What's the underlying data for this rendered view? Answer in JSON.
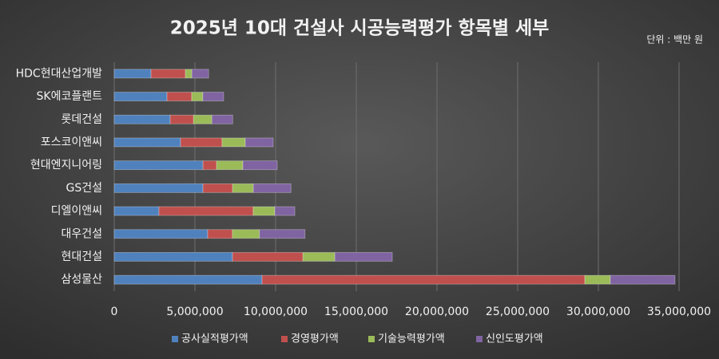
{
  "chart_data": {
    "type": "stacked-barh",
    "title": "2025년 10대 건설사 시공능력평가 항목별 세부",
    "unit_note": "단위 : 백만 원",
    "categories": [
      "HDC현대산업개발",
      "SK에코플랜트",
      "롯데건설",
      "포스코이앤씨",
      "현대엔지니어링",
      "GS건설",
      "디엘이앤씨",
      "대우건설",
      "현대건설",
      "삼성물산"
    ],
    "series": [
      {
        "name": "공사실적평가액",
        "color": "#4f81bd",
        "values": [
          2280000,
          3270000,
          3470000,
          4110000,
          5500000,
          5500000,
          2770000,
          5790000,
          7330000,
          9160000
        ]
      },
      {
        "name": "경영평가액",
        "color": "#c0504d",
        "values": [
          2130000,
          1530000,
          1440000,
          2570000,
          840000,
          1830000,
          5840000,
          1530000,
          4360000,
          20000000
        ]
      },
      {
        "name": "기술능력평가액",
        "color": "#9bbb59",
        "values": [
          400000,
          690000,
          1140000,
          1440000,
          1630000,
          1290000,
          1340000,
          1680000,
          1980000,
          1580000
        ]
      },
      {
        "name": "신인도평가액",
        "color": "#8064a2",
        "values": [
          1040000,
          1290000,
          1290000,
          1730000,
          2130000,
          2330000,
          1240000,
          2820000,
          3560000,
          4010000
        ]
      }
    ],
    "xlim": [
      0,
      35000000
    ],
    "xticks": [
      0,
      {
        "value": 5000000,
        "label": "5,000,000"
      },
      {
        "value": 10000000,
        "label": "10,000,000"
      },
      {
        "value": 15000000,
        "label": "15,000,000"
      },
      {
        "value": 20000000,
        "label": "20,000,000"
      },
      {
        "value": 25000000,
        "label": "25,000,000"
      },
      {
        "value": 30000000,
        "label": "30,000,000"
      },
      {
        "value": 35000000,
        "label": "35,000,000"
      }
    ],
    "grid": true,
    "legend": "bottom"
  }
}
